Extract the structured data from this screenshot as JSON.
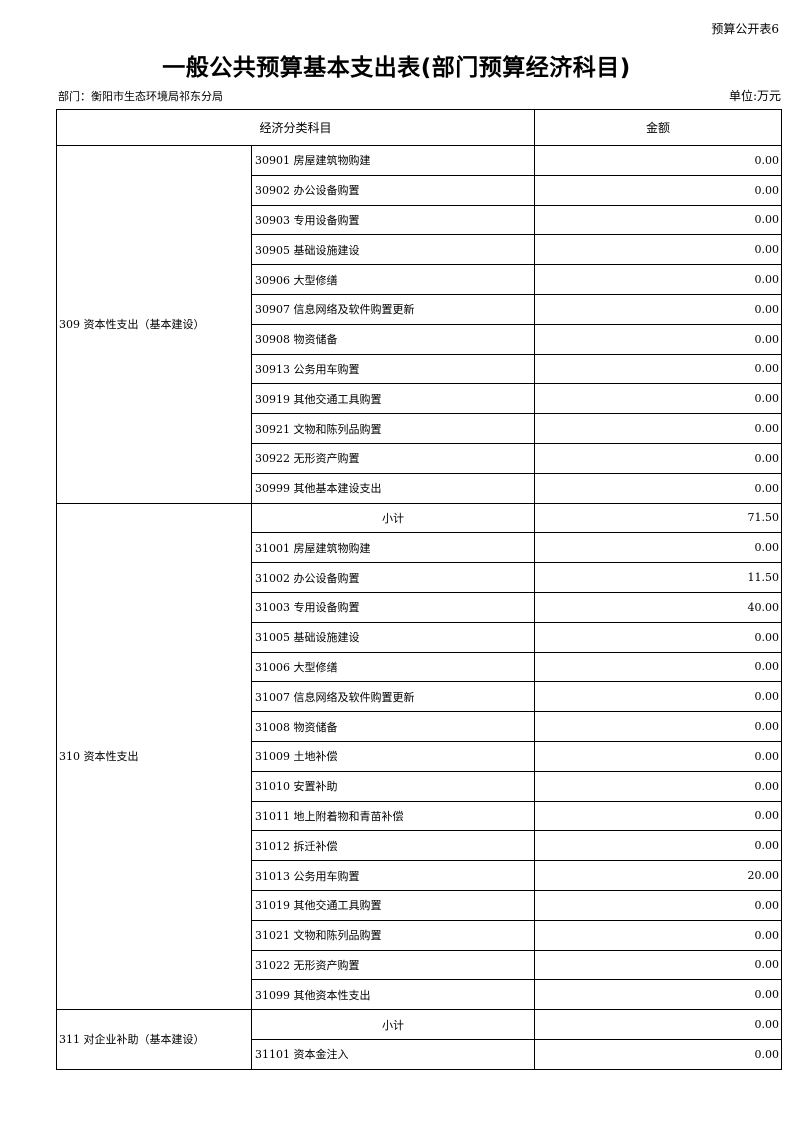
{
  "header": {
    "code": "预算公开表6",
    "title": "一般公共预算基本支出表(部门预算经济科目)",
    "department": "部门：衡阳市生态环境局祁东分局",
    "unit": "单位:万元"
  },
  "table": {
    "columns": [
      "经济分类科目",
      "金额"
    ],
    "groups": [
      {
        "label": "309 资本性支出（基本建设）",
        "rows": [
          {
            "item": "30901 房屋建筑物购建",
            "amount": "0.00"
          },
          {
            "item": "30902 办公设备购置",
            "amount": "0.00"
          },
          {
            "item": "30903 专用设备购置",
            "amount": "0.00"
          },
          {
            "item": "30905 基础设施建设",
            "amount": "0.00"
          },
          {
            "item": "30906 大型修缮",
            "amount": "0.00"
          },
          {
            "item": "30907 信息网络及软件购置更新",
            "amount": "0.00"
          },
          {
            "item": "30908 物资储备",
            "amount": "0.00"
          },
          {
            "item": "30913 公务用车购置",
            "amount": "0.00"
          },
          {
            "item": "30919 其他交通工具购置",
            "amount": "0.00"
          },
          {
            "item": "30921 文物和陈列品购置",
            "amount": "0.00"
          },
          {
            "item": "30922 无形资产购置",
            "amount": "0.00"
          },
          {
            "item": "30999 其他基本建设支出",
            "amount": "0.00"
          }
        ]
      },
      {
        "label": "310 资本性支出",
        "rows": [
          {
            "item": "小计",
            "amount": "71.50",
            "subtotal": true
          },
          {
            "item": "31001 房屋建筑物购建",
            "amount": "0.00"
          },
          {
            "item": "31002 办公设备购置",
            "amount": "11.50"
          },
          {
            "item": "31003 专用设备购置",
            "amount": "40.00"
          },
          {
            "item": "31005 基础设施建设",
            "amount": "0.00"
          },
          {
            "item": "31006 大型修缮",
            "amount": "0.00"
          },
          {
            "item": "31007 信息网络及软件购置更新",
            "amount": "0.00"
          },
          {
            "item": "31008 物资储备",
            "amount": "0.00"
          },
          {
            "item": "31009 土地补偿",
            "amount": "0.00"
          },
          {
            "item": "31010 安置补助",
            "amount": "0.00"
          },
          {
            "item": "31011 地上附着物和青苗补偿",
            "amount": "0.00"
          },
          {
            "item": "31012 拆迁补偿",
            "amount": "0.00"
          },
          {
            "item": "31013 公务用车购置",
            "amount": "20.00"
          },
          {
            "item": "31019 其他交通工具购置",
            "amount": "0.00"
          },
          {
            "item": "31021 文物和陈列品购置",
            "amount": "0.00"
          },
          {
            "item": "31022 无形资产购置",
            "amount": "0.00"
          },
          {
            "item": "31099 其他资本性支出",
            "amount": "0.00"
          }
        ]
      },
      {
        "label": "311 对企业补助（基本建设）",
        "rows": [
          {
            "item": "小计",
            "amount": "0.00",
            "subtotal": true
          },
          {
            "item": "31101 资本金注入",
            "amount": "0.00"
          }
        ]
      }
    ]
  }
}
